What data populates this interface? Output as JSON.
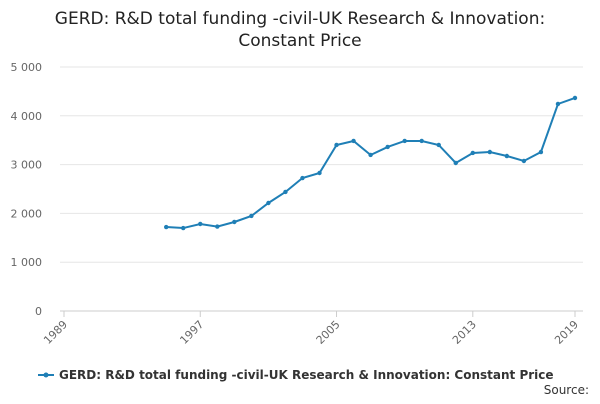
{
  "chart_data": {
    "type": "line",
    "title": "GERD: R&D total funding -civil-UK Research & Innovation: Constant Price",
    "x": [
      1995,
      1996,
      1997,
      1998,
      1999,
      2000,
      2001,
      2002,
      2003,
      2004,
      2005,
      2006,
      2007,
      2008,
      2009,
      2010,
      2011,
      2012,
      2013,
      2014,
      2015,
      2016,
      2017,
      2018,
      2019
    ],
    "series": [
      {
        "name": "GERD: R&D total funding -civil-UK Research & Innovation: Constant Price",
        "color": "#1f7fb6",
        "values": [
          1721,
          1700,
          1783,
          1730,
          1824,
          1947,
          2213,
          2439,
          2725,
          2828,
          3402,
          3484,
          3197,
          3361,
          3484,
          3484,
          3402,
          3033,
          3238,
          3258,
          3176,
          3074,
          3258,
          4242,
          4365
        ]
      }
    ],
    "xlim": [
      1989,
      2019
    ],
    "xticks": [
      1989,
      1997,
      2005,
      2013,
      2019
    ],
    "ylim": [
      0,
      5000
    ],
    "yticks": [
      0,
      {
        "value": 1000,
        "label": "1 000"
      },
      {
        "value": 2000,
        "label": "2 000"
      },
      {
        "value": 3000,
        "label": "3 000"
      },
      {
        "value": 4000,
        "label": "4 000"
      },
      {
        "value": 5000,
        "label": "5 000"
      }
    ],
    "grid": true,
    "legend": "bottom",
    "source": "Source:"
  }
}
